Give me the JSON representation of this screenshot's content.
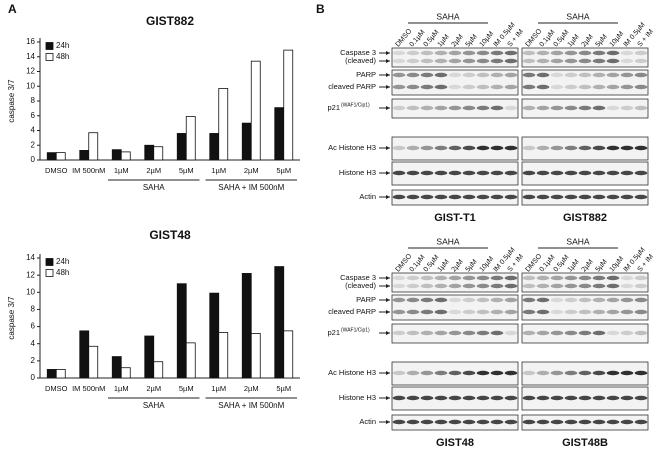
{
  "panel_a": {
    "label": "A"
  },
  "chart_data": [
    {
      "type": "bar",
      "title": "GIST882",
      "y_label": "caspase 3/7",
      "categories": [
        "DMSO",
        "IM 500nM",
        "1µM",
        "2µM",
        "5µM",
        "1µM",
        "2µM",
        "5µM"
      ],
      "category_groups": [
        "SAHA",
        "SAHA + IM 500nM"
      ],
      "series": [
        {
          "name": "24h",
          "color": "#111111",
          "values": [
            1.0,
            1.3,
            1.4,
            2.0,
            3.6,
            3.6,
            5.0,
            7.1
          ]
        },
        {
          "name": "48h",
          "color": "#ffffff",
          "values": [
            1.0,
            3.7,
            1.1,
            1.8,
            5.9,
            9.7,
            13.4,
            14.9
          ]
        }
      ],
      "ylim": [
        0,
        16
      ],
      "yticks": [
        0,
        2,
        4,
        6,
        8,
        10,
        12,
        14,
        16
      ],
      "legend": "upper left"
    },
    {
      "type": "bar",
      "title": "GIST48",
      "y_label": "caspase 3/7",
      "categories": [
        "DMSO",
        "IM 500nM",
        "1µM",
        "2µM",
        "5µM",
        "1µM",
        "2µM",
        "5µM"
      ],
      "category_groups": [
        "SAHA",
        "SAHA + IM 500nM"
      ],
      "series": [
        {
          "name": "24h",
          "color": "#111111",
          "values": [
            1.0,
            5.5,
            2.5,
            4.9,
            11.0,
            9.9,
            12.2,
            13.0
          ]
        },
        {
          "name": "48h",
          "color": "#ffffff",
          "values": [
            1.0,
            3.7,
            1.2,
            1.9,
            4.1,
            5.3,
            5.2,
            5.5
          ]
        }
      ],
      "ylim": [
        0,
        14
      ],
      "yticks": [
        0,
        2,
        4,
        6,
        8,
        10,
        12,
        14
      ],
      "legend": "upper left"
    }
  ],
  "panel_b": {
    "label": "B",
    "sections": [
      {
        "lanes": [
          "DMSO",
          "0.1µM",
          "0.5µM",
          "1µM",
          "2µM",
          "5µM",
          "10µM",
          "IM 0.5µM",
          "S + IM"
        ],
        "treatment": "SAHA",
        "rows": [
          {
            "lines": [
              "Caspase 3",
              "(cleaved)"
            ]
          },
          {
            "lines": [
              "PARP",
              "cleaved PARP"
            ]
          },
          {
            "lines": [
              "p21"
            ],
            "superscript": "(WAF1/Cip1)"
          },
          {
            "lines": [
              "Ac Histone H3"
            ]
          },
          {
            "lines": [
              "Histone H3"
            ]
          },
          {
            "lines": [
              "Actin"
            ]
          }
        ],
        "titles": [
          "GIST-T1",
          "GIST882"
        ]
      },
      {
        "lanes": [
          "DMSO",
          "0.1µM",
          "0.5µM",
          "1µM",
          "2µM",
          "5µM",
          "10µM",
          "IM 0.5µM",
          "S + IM"
        ],
        "treatment": "SAHA",
        "rows": [
          {
            "lines": [
              "Caspase 3",
              "(cleaved)"
            ]
          },
          {
            "lines": [
              "PARP",
              "cleaved PARP"
            ]
          },
          {
            "lines": [
              "p21"
            ],
            "superscript": "(WAF1/Cip1)"
          },
          {
            "lines": [
              "Ac Histone H3"
            ]
          },
          {
            "lines": [
              "Histone H3"
            ]
          },
          {
            "lines": [
              "Actin"
            ]
          }
        ],
        "titles": [
          "GIST48",
          "GIST48B"
        ]
      }
    ]
  }
}
